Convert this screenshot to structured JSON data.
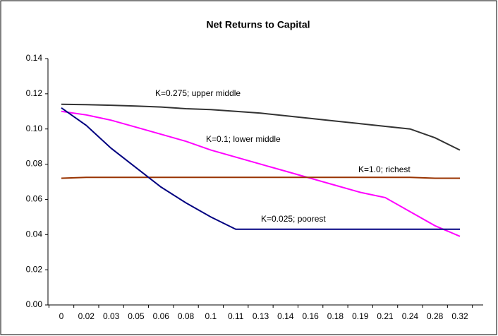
{
  "chart_data": {
    "type": "line",
    "title": "Net Returns to Capital",
    "categories": [
      "0",
      "0.02",
      "0.03",
      "0.05",
      "0.06",
      "0.08",
      "0.1",
      "0.11",
      "0.13",
      "0.14",
      "0.16",
      "0.18",
      "0.19",
      "0.21",
      "0.24",
      "0.28",
      "0.32"
    ],
    "series": [
      {
        "name": "K=0.275; upper middle",
        "color": "#333333",
        "values": [
          0.114,
          0.1138,
          0.1135,
          0.113,
          0.1125,
          0.1115,
          0.111,
          0.11,
          0.109,
          0.1075,
          0.106,
          0.1045,
          0.103,
          0.1015,
          0.1,
          0.095,
          0.088
        ]
      },
      {
        "name": "K=0.1; lower middle",
        "color": "#ff00ff",
        "values": [
          0.11,
          0.108,
          0.105,
          0.101,
          0.097,
          0.093,
          0.088,
          0.084,
          0.08,
          0.076,
          0.072,
          0.068,
          0.064,
          0.061,
          0.053,
          0.045,
          0.039
        ]
      },
      {
        "name": "K=1.0; richest",
        "color": "#993300",
        "values": [
          0.072,
          0.0725,
          0.0725,
          0.0725,
          0.0725,
          0.0725,
          0.0725,
          0.0725,
          0.0725,
          0.0725,
          0.0725,
          0.0725,
          0.0725,
          0.0725,
          0.0725,
          0.072,
          0.072
        ]
      },
      {
        "name": "K=0.025; poorest",
        "color": "#000080",
        "values": [
          0.112,
          0.102,
          0.089,
          0.078,
          0.067,
          0.058,
          0.05,
          0.043,
          0.043,
          0.043,
          0.043,
          0.043,
          0.043,
          0.043,
          0.043,
          0.043,
          0.043
        ]
      }
    ],
    "ylim": [
      0,
      0.14
    ],
    "yticks": [
      {
        "value": 0,
        "label": "0.00"
      },
      {
        "value": 0.02,
        "label": "0.02"
      },
      {
        "value": 0.04,
        "label": "0.04"
      },
      {
        "value": 0.06,
        "label": "0.06"
      },
      {
        "value": 0.08,
        "label": "0.08"
      },
      {
        "value": 0.1,
        "label": "0.10"
      },
      {
        "value": 0.12,
        "label": "0.12"
      },
      {
        "value": 0.14,
        "label": "0.14"
      }
    ]
  }
}
